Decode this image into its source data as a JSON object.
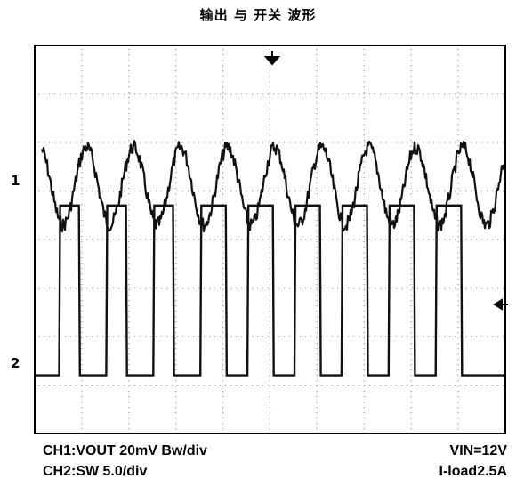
{
  "title": "输出 与 开关 波形",
  "channels": [
    {
      "marker": "1",
      "settings": "CH1:VOUT 20mV Bw/div"
    },
    {
      "marker": "2",
      "settings": "CH2:SW 5.0/div"
    }
  ],
  "conditions": {
    "vin": "VIN=12V",
    "load": "I-load2.5A"
  },
  "trigger_marker": "trigger-arrow",
  "chart_data": {
    "type": "line",
    "title": "输出 与 开关 波形",
    "grid": true,
    "grid_divisions": {
      "x": 10,
      "y": 8
    },
    "x": [
      0,
      0.52,
      0.54,
      0.94,
      0.96,
      1.52,
      1.54,
      1.94,
      1.96,
      2.52,
      2.54,
      2.94,
      2.96,
      3.52,
      3.54,
      4.06,
      4.08,
      4.52,
      4.54,
      5.06,
      5.08,
      5.52,
      5.54,
      6.06,
      6.08,
      6.52,
      6.54,
      7.06,
      7.08,
      7.52,
      7.54,
      8.06,
      8.08,
      8.52,
      8.54,
      9.06,
      9.08,
      10
    ],
    "series": [
      {
        "name": "CH1",
        "kind": "sine",
        "x": [
          0.1,
          0.6,
          1.1,
          1.6,
          2.1,
          2.6,
          3.1,
          3.6,
          4.1,
          4.6,
          5.1,
          5.6,
          6.1,
          6.6,
          7.1,
          7.6,
          8.1,
          8.6,
          9.1,
          9.6
        ],
        "values": [
          1,
          -1,
          1,
          -1,
          1,
          -1,
          1,
          -1,
          1,
          -1,
          1,
          -1,
          1,
          -1,
          1,
          -1,
          1,
          -1,
          1,
          -1
        ],
        "unit": "div",
        "noise_div": 0.18
      },
      {
        "name": "CH2",
        "kind": "square",
        "values": [
          0,
          0,
          3.5,
          3.5,
          0,
          0,
          3.5,
          3.5,
          0,
          0,
          3.5,
          3.5,
          0,
          0,
          3.5,
          3.5,
          0,
          0,
          3.5,
          3.5,
          0,
          0,
          3.5,
          3.5,
          0,
          0,
          3.5,
          3.5,
          0,
          0,
          3.5,
          3.5,
          0,
          0,
          3.5,
          3.5,
          0,
          0
        ],
        "unit": "div"
      }
    ],
    "colors": {
      "trace": "#111111",
      "grid": "#9a9a9a",
      "frame": "#000000"
    }
  }
}
